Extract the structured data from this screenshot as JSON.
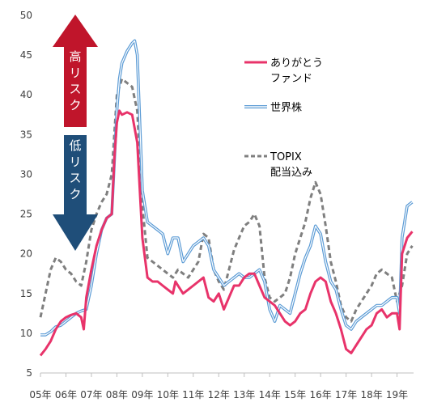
{
  "chart_data": {
    "type": "line",
    "ylim": [
      5,
      50
    ],
    "yticks": [
      "5",
      "10",
      "15",
      "20",
      "25",
      "30",
      "35",
      "40",
      "45",
      "50"
    ],
    "xlim": [
      2005,
      2019.65
    ],
    "xticks": [
      {
        "x": 2005,
        "label": "05年"
      },
      {
        "x": 2006,
        "label": "06年"
      },
      {
        "x": 2007,
        "label": "07年"
      },
      {
        "x": 2008,
        "label": "08年"
      },
      {
        "x": 2009,
        "label": "09年"
      },
      {
        "x": 2010,
        "label": "10年"
      },
      {
        "x": 2011,
        "label": "11年"
      },
      {
        "x": 2012,
        "label": "12年"
      },
      {
        "x": 2013,
        "label": "13年"
      },
      {
        "x": 2014,
        "label": "14年"
      },
      {
        "x": 2015,
        "label": "15年"
      },
      {
        "x": 2016,
        "label": "16年"
      },
      {
        "x": 2017,
        "label": "17年"
      },
      {
        "x": 2018,
        "label": "18年"
      },
      {
        "x": 2019,
        "label": "19年"
      }
    ],
    "annotations": {
      "high_risk": "高リスク",
      "low_risk": "低リスク",
      "high_color": "#c0152b",
      "low_color": "#1f4e79"
    },
    "series": [
      {
        "name": "ありがとう\nファンド",
        "color": "#e8336a",
        "style": "solid",
        "x": [
          2005.0,
          2005.2,
          2005.4,
          2005.6,
          2005.8,
          2006.0,
          2006.2,
          2006.4,
          2006.6,
          2006.7,
          2006.8,
          2007.0,
          2007.2,
          2007.4,
          2007.6,
          2007.8,
          2007.9,
          2008.0,
          2008.1,
          2008.2,
          2008.4,
          2008.6,
          2008.8,
          2009.0,
          2009.2,
          2009.4,
          2009.6,
          2009.8,
          2010.0,
          2010.2,
          2010.3,
          2010.4,
          2010.6,
          2010.8,
          2011.0,
          2011.2,
          2011.4,
          2011.6,
          2011.8,
          2012.0,
          2012.2,
          2012.4,
          2012.6,
          2012.8,
          2013.0,
          2013.2,
          2013.4,
          2013.6,
          2013.8,
          2014.0,
          2014.2,
          2014.4,
          2014.6,
          2014.8,
          2015.0,
          2015.2,
          2015.4,
          2015.6,
          2015.8,
          2016.0,
          2016.2,
          2016.4,
          2016.6,
          2016.8,
          2017.0,
          2017.2,
          2017.4,
          2017.6,
          2017.8,
          2018.0,
          2018.2,
          2018.4,
          2018.6,
          2018.8,
          2019.0,
          2019.1,
          2019.2,
          2019.4,
          2019.6
        ],
        "values": [
          7.2,
          8.0,
          9.0,
          10.5,
          11.5,
          12.0,
          12.3,
          12.5,
          12.0,
          10.5,
          14.5,
          18.0,
          21.0,
          23.0,
          24.5,
          25.0,
          32.0,
          36.5,
          38.0,
          37.5,
          37.8,
          37.5,
          34.0,
          22.0,
          17.0,
          16.5,
          16.5,
          16.0,
          15.5,
          15.0,
          16.5,
          16.0,
          15.0,
          15.5,
          16.0,
          16.5,
          17.0,
          14.5,
          14.0,
          15.0,
          13.0,
          14.5,
          16.0,
          16.0,
          17.0,
          17.5,
          17.5,
          16.0,
          14.5,
          14.0,
          13.5,
          12.5,
          11.5,
          11.0,
          11.5,
          12.5,
          13.0,
          15.0,
          16.5,
          17.0,
          16.5,
          14.0,
          12.5,
          10.5,
          8.0,
          7.5,
          8.5,
          9.5,
          10.5,
          11.0,
          12.5,
          13.0,
          12.0,
          12.5,
          12.5,
          10.5,
          20.0,
          22.0,
          22.8
        ]
      },
      {
        "name": "世界株",
        "color": "#5b9bd5",
        "style": "double",
        "x": [
          2005.0,
          2005.2,
          2005.4,
          2005.6,
          2005.8,
          2006.0,
          2006.2,
          2006.4,
          2006.6,
          2006.8,
          2007.0,
          2007.2,
          2007.4,
          2007.6,
          2007.8,
          2008.0,
          2008.1,
          2008.2,
          2008.4,
          2008.6,
          2008.7,
          2008.8,
          2009.0,
          2009.2,
          2009.4,
          2009.6,
          2009.8,
          2010.0,
          2010.2,
          2010.4,
          2010.6,
          2010.8,
          2011.0,
          2011.2,
          2011.4,
          2011.6,
          2011.8,
          2012.0,
          2012.2,
          2012.4,
          2012.6,
          2012.8,
          2013.0,
          2013.2,
          2013.4,
          2013.6,
          2013.8,
          2014.0,
          2014.2,
          2014.4,
          2014.6,
          2014.8,
          2015.0,
          2015.2,
          2015.4,
          2015.6,
          2015.8,
          2016.0,
          2016.2,
          2016.4,
          2016.6,
          2016.8,
          2017.0,
          2017.2,
          2017.4,
          2017.6,
          2017.8,
          2018.0,
          2018.2,
          2018.4,
          2018.6,
          2018.8,
          2019.0,
          2019.1,
          2019.2,
          2019.4,
          2019.6
        ],
        "values": [
          9.8,
          9.8,
          10.2,
          10.8,
          11.0,
          11.5,
          12.0,
          12.5,
          12.8,
          13.0,
          16.0,
          20.0,
          23.0,
          24.5,
          25.0,
          38.0,
          42.0,
          44.0,
          45.5,
          46.5,
          46.8,
          45.0,
          28.0,
          24.0,
          23.5,
          23.0,
          22.5,
          20.0,
          22.0,
          22.0,
          19.0,
          20.0,
          21.0,
          21.5,
          22.0,
          21.0,
          18.0,
          17.0,
          16.0,
          16.5,
          17.0,
          17.5,
          17.0,
          17.0,
          17.5,
          18.0,
          16.5,
          13.0,
          11.5,
          13.5,
          13.0,
          12.5,
          15.0,
          17.5,
          19.5,
          21.0,
          23.5,
          22.5,
          19.0,
          16.5,
          15.5,
          13.0,
          11.0,
          10.5,
          11.5,
          12.0,
          12.5,
          13.0,
          13.5,
          13.5,
          14.0,
          14.5,
          14.5,
          12.5,
          22.0,
          26.0,
          26.5
        ]
      },
      {
        "name": "TOPIX\n配当込み",
        "color": "#7f7f7f",
        "style": "dashed",
        "x": [
          2005.0,
          2005.2,
          2005.4,
          2005.6,
          2005.8,
          2006.0,
          2006.2,
          2006.4,
          2006.6,
          2006.8,
          2007.0,
          2007.2,
          2007.4,
          2007.6,
          2007.8,
          2008.0,
          2008.2,
          2008.4,
          2008.6,
          2008.8,
          2009.0,
          2009.2,
          2009.4,
          2009.6,
          2009.8,
          2010.0,
          2010.2,
          2010.4,
          2010.6,
          2010.8,
          2011.0,
          2011.2,
          2011.4,
          2011.6,
          2011.8,
          2012.0,
          2012.2,
          2012.4,
          2012.6,
          2012.8,
          2013.0,
          2013.2,
          2013.4,
          2013.6,
          2013.8,
          2014.0,
          2014.2,
          2014.4,
          2014.6,
          2014.8,
          2015.0,
          2015.2,
          2015.4,
          2015.6,
          2015.8,
          2016.0,
          2016.2,
          2016.4,
          2016.6,
          2016.8,
          2017.0,
          2017.2,
          2017.4,
          2017.6,
          2017.8,
          2018.0,
          2018.2,
          2018.4,
          2018.6,
          2018.8,
          2019.0,
          2019.2,
          2019.4,
          2019.6
        ],
        "values": [
          12.0,
          15.0,
          18.0,
          19.5,
          19.0,
          18.0,
          17.5,
          16.5,
          16.0,
          19.0,
          23.0,
          25.0,
          26.5,
          27.5,
          30.0,
          40.0,
          42.0,
          41.5,
          41.0,
          38.0,
          26.0,
          19.5,
          19.0,
          18.5,
          18.0,
          17.5,
          17.0,
          18.0,
          17.5,
          17.0,
          18.0,
          19.0,
          22.5,
          22.0,
          18.0,
          16.5,
          15.5,
          18.0,
          20.5,
          22.0,
          23.5,
          24.0,
          25.0,
          23.5,
          17.0,
          14.5,
          14.0,
          14.5,
          15.0,
          17.0,
          20.0,
          22.0,
          24.0,
          27.0,
          29.0,
          27.5,
          23.5,
          19.0,
          16.5,
          13.5,
          12.0,
          11.5,
          13.0,
          14.0,
          15.0,
          16.0,
          17.5,
          18.0,
          17.5,
          17.0,
          14.0,
          16.0,
          20.0,
          21.0
        ]
      }
    ]
  }
}
